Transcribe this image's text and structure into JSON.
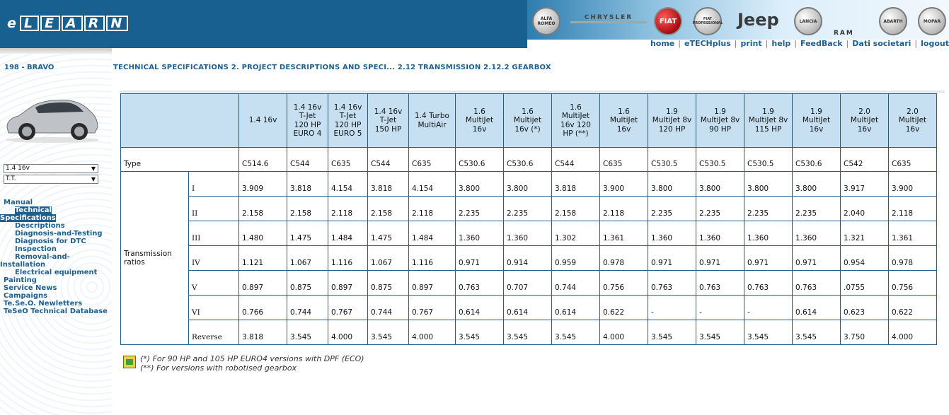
{
  "header": {
    "logo": {
      "prefix": "e",
      "boxed": [
        "L",
        "E",
        "A",
        "R",
        "N"
      ]
    },
    "brands": [
      "ALFA ROMEO",
      "CHRYSLER",
      "FIAT",
      "FIAT PROFESSIONAL",
      "Jeep",
      "LANCIA",
      "RAM",
      "ABARTH",
      "MOPAR"
    ],
    "nav": [
      "home",
      "eTECHplus",
      "print",
      "help",
      "FeedBack",
      "Dati societari",
      "logout"
    ]
  },
  "sidebar": {
    "model": "198 - BRAVO",
    "select_engine": "1.4 16v",
    "select_type": "T.T.",
    "menu": [
      {
        "label": "Manual",
        "indent": 0
      },
      {
        "label": "Technical",
        "indent": 2,
        "active": true
      },
      {
        "label": "Specifications",
        "indent": 0,
        "active": true
      },
      {
        "label": "Descriptions",
        "indent": 2
      },
      {
        "label": "Diagnosis-and-Testing",
        "indent": 2
      },
      {
        "label": "Diagnosis for DTC",
        "indent": 2
      },
      {
        "label": "Inspection",
        "indent": 2
      },
      {
        "label": "Removal-and-",
        "indent": 2
      },
      {
        "label": "Installation",
        "indent": 0
      },
      {
        "label": "Electrical equipment",
        "indent": 2
      },
      {
        "label": "Painting",
        "indent": 1
      },
      {
        "label": "Service News",
        "indent": 1
      },
      {
        "label": "Campaigns",
        "indent": 1
      },
      {
        "label": "Te.Se.O. Newletters",
        "indent": 1
      },
      {
        "label": "TeSeO Technical Database",
        "indent": 1
      }
    ]
  },
  "breadcrumb": "TECHNICAL SPECIFICATIONS 2. PROJECT DESCRIPTIONS AND SPECI... 2.12 TRANSMISSION 2.12.2 GEARBOX",
  "table": {
    "columns": [
      [
        "1.4 16v"
      ],
      [
        "1.4 16v",
        "T-Jet",
        "120 HP",
        "EURO 4"
      ],
      [
        "1.4 16v",
        "T-Jet",
        "120 HP",
        "EURO 5"
      ],
      [
        "1.4 16v",
        "T-Jet",
        "150 HP"
      ],
      [
        "1.4 Turbo",
        "MultiAir"
      ],
      [
        "1.6",
        "MultiJet",
        "16v"
      ],
      [
        "1.6",
        "Multijet",
        "16v (*)"
      ],
      [
        "1.6",
        "MultiJet",
        "16v 120",
        "HP (**)"
      ],
      [
        "1.6",
        "MultiJet",
        "16v"
      ],
      [
        "1.9",
        "MultiJet 8v",
        "120 HP"
      ],
      [
        "1.9",
        "MultiJet 8v",
        "90 HP"
      ],
      [
        "1.9",
        "MultiJet 8v",
        "115 HP"
      ],
      [
        "1.9",
        "MultiJet",
        "16v"
      ],
      [
        "2.0",
        "MultiJet",
        "16v"
      ],
      [
        "2.0",
        "MultiJet",
        "16v"
      ]
    ],
    "type_label": "Type",
    "types": [
      "C514.6",
      "C544",
      "C635",
      "C544",
      "C635",
      "C530.6",
      "C530.6",
      "C544",
      "C635",
      "C530.5",
      "C530.5",
      "C530.5",
      "C530.6",
      "C542",
      "C635"
    ],
    "group_label": "Transmission ratios",
    "rows": [
      {
        "gear": "I",
        "values": [
          "3.909",
          "3.818",
          "4.154",
          "3.818",
          "4.154",
          "3.800",
          "3.800",
          "3.818",
          "3.900",
          "3.800",
          "3.800",
          "3.800",
          "3.800",
          "3.917",
          "3.900"
        ]
      },
      {
        "gear": "II",
        "values": [
          "2.158",
          "2.158",
          "2.118",
          "2.158",
          "2.118",
          "2.235",
          "2.235",
          "2.158",
          "2.118",
          "2.235",
          "2.235",
          "2.235",
          "2.235",
          "2.040",
          "2.118"
        ]
      },
      {
        "gear": "III",
        "values": [
          "1.480",
          "1.475",
          "1.484",
          "1.475",
          "1.484",
          "1.360",
          "1.360",
          "1.302",
          "1.361",
          "1.360",
          "1.360",
          "1.360",
          "1.360",
          "1.321",
          "1.361"
        ]
      },
      {
        "gear": "IV",
        "values": [
          "1.121",
          "1.067",
          "1.116",
          "1.067",
          "1.116",
          "0.971",
          "0.914",
          "0.959",
          "0.978",
          "0.971",
          "0.971",
          "0.971",
          "0.971",
          "0.954",
          "0.978"
        ]
      },
      {
        "gear": "V",
        "values": [
          "0.897",
          "0.875",
          "0.897",
          "0.875",
          "0.897",
          "0.763",
          "0.707",
          "0.744",
          "0.756",
          "0.763",
          "0.763",
          "0.763",
          "0.763",
          ".0755",
          "0.756"
        ]
      },
      {
        "gear": "VI",
        "values": [
          "0.766",
          "0.744",
          "0.767",
          "0.744",
          "0.767",
          "0.614",
          "0.614",
          "0.614",
          "0.622",
          "-",
          "-",
          "-",
          "0.614",
          "0.623",
          "0.622"
        ]
      },
      {
        "gear": "Reverse",
        "values": [
          "3.818",
          "3.545",
          "4.000",
          "3.545",
          "4.000",
          "3.545",
          "3.545",
          "3.545",
          "4.000",
          "3.545",
          "3.545",
          "3.545",
          "3.545",
          "3.750",
          "4.000"
        ]
      }
    ]
  },
  "footnotes": [
    "(*) For 90 HP and 105 HP EURO4 versions with DPF (ECO)",
    "(**) For versions with robotised gearbox"
  ]
}
